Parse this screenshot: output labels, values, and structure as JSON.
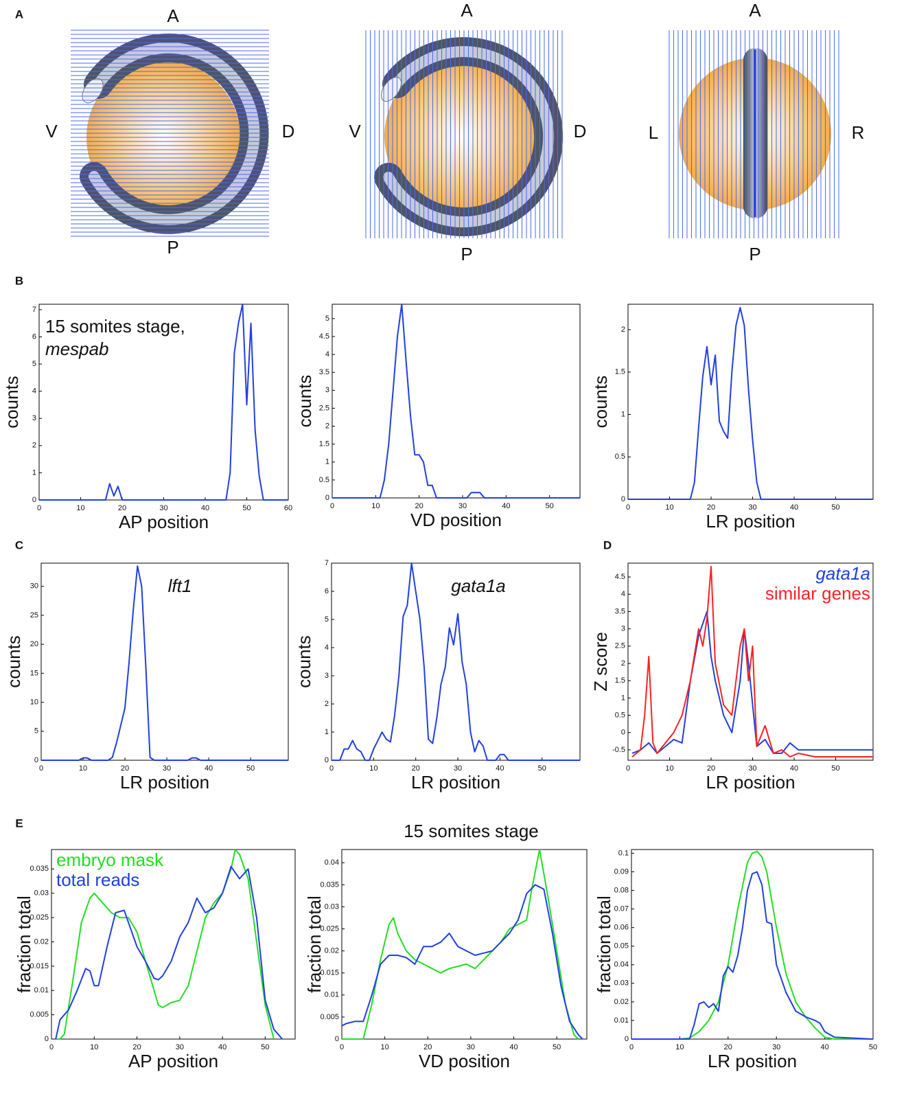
{
  "panel_labels": [
    "A",
    "B",
    "C",
    "D",
    "E"
  ],
  "diagrams": [
    {
      "top": "A",
      "bottom": "P",
      "left": "V",
      "right": "D"
    },
    {
      "top": "A",
      "bottom": "P",
      "left": "V",
      "right": "D"
    },
    {
      "top": "A",
      "bottom": "P",
      "left": "L",
      "right": "R"
    }
  ],
  "chart_data": [
    {
      "type": "line",
      "xlabel": "AP position",
      "ylabel": "counts",
      "annotations": [
        {
          "text": "15 somites stage,",
          "italic": false
        },
        {
          "text": "mespab",
          "italic": true
        }
      ],
      "xlim": [
        0,
        60
      ],
      "xticks": [
        0,
        10,
        20,
        30,
        40,
        50,
        60
      ],
      "ylim": [
        0,
        7.2
      ],
      "yticks": [
        0,
        1,
        2,
        3,
        4,
        5,
        6,
        7
      ],
      "series": [
        {
          "color": "#1f3fe0",
          "x": [
            0,
            16,
            17,
            18,
            19,
            20,
            45,
            46,
            47,
            48,
            49,
            50,
            51,
            52,
            53,
            54,
            60
          ],
          "values": [
            0,
            0,
            0.6,
            0.15,
            0.5,
            0,
            0,
            1,
            5.4,
            6.5,
            7.2,
            3.5,
            6.5,
            2.6,
            0.9,
            0,
            0
          ]
        }
      ]
    },
    {
      "type": "line",
      "xlabel": "VD position",
      "ylabel": "counts",
      "xlim": [
        0,
        57
      ],
      "xticks": [
        0,
        10,
        20,
        30,
        40,
        50
      ],
      "ylim": [
        0,
        5.4
      ],
      "yticks": [
        0,
        0.5,
        1,
        1.5,
        2,
        2.5,
        3,
        3.5,
        4,
        4.5,
        5
      ],
      "series": [
        {
          "color": "#1f3fe0",
          "x": [
            0,
            11,
            12,
            13,
            14,
            15,
            16,
            17,
            18,
            19,
            20,
            21,
            22,
            23,
            24,
            25,
            31,
            32,
            33,
            34,
            35,
            57
          ],
          "values": [
            0,
            0,
            0.5,
            1.5,
            3,
            4.5,
            5.4,
            3.8,
            2.3,
            1.2,
            1.2,
            1,
            0.35,
            0.35,
            0,
            0,
            0,
            0.15,
            0.15,
            0.15,
            0,
            0
          ]
        }
      ]
    },
    {
      "type": "line",
      "xlabel": "LR position",
      "ylabel": "counts",
      "xlim": [
        0,
        59
      ],
      "xticks": [
        0,
        10,
        20,
        30,
        40,
        50
      ],
      "ylim": [
        0,
        2.3
      ],
      "yticks": [
        0,
        0.5,
        1,
        1.5,
        2
      ],
      "series": [
        {
          "color": "#1f3fe0",
          "x": [
            0,
            15,
            16,
            17,
            18,
            19,
            20,
            21,
            22,
            23,
            24,
            25,
            26,
            27,
            28,
            29,
            30,
            31,
            32,
            59
          ],
          "values": [
            0,
            0,
            0.2,
            0.85,
            1.45,
            1.8,
            1.35,
            1.7,
            0.92,
            0.8,
            0.72,
            1.5,
            2.05,
            2.26,
            2.05,
            1.3,
            0.7,
            0.2,
            0,
            0
          ]
        }
      ]
    },
    {
      "type": "line",
      "xlabel": "LR position",
      "ylabel": "counts",
      "annotations": [
        {
          "text": "lft1",
          "italic": true
        }
      ],
      "xlim": [
        0,
        59
      ],
      "xticks": [
        0,
        10,
        20,
        30,
        40,
        50
      ],
      "ylim": [
        0,
        34
      ],
      "yticks": [
        0,
        5,
        10,
        15,
        20,
        25,
        30
      ],
      "series": [
        {
          "color": "#1f3fe0",
          "x": [
            0,
            9,
            10,
            11,
            12,
            13,
            16,
            17,
            18,
            19,
            20,
            21,
            22,
            23,
            24,
            25,
            26,
            27,
            35,
            36,
            37,
            38,
            59
          ],
          "values": [
            0,
            0,
            0.4,
            0.4,
            0,
            0,
            0,
            0.5,
            3,
            6,
            9,
            17,
            26,
            33.5,
            30,
            16,
            0.5,
            0,
            0,
            0.4,
            0.4,
            0,
            0
          ]
        }
      ]
    },
    {
      "type": "line",
      "xlabel": "LR position",
      "ylabel": "counts",
      "annotations": [
        {
          "text": "gata1a",
          "italic": true
        }
      ],
      "xlim": [
        0,
        59
      ],
      "xticks": [
        0,
        10,
        20,
        30,
        40,
        50
      ],
      "ylim": [
        0,
        7
      ],
      "yticks": [
        0,
        1,
        2,
        3,
        4,
        5,
        6,
        7
      ],
      "series": [
        {
          "color": "#1f3fe0",
          "x": [
            0,
            1,
            2,
            3,
            4,
            5,
            6,
            7,
            8,
            9,
            10,
            11,
            12,
            13,
            14,
            15,
            16,
            17,
            18,
            19,
            20,
            21,
            22,
            23,
            24,
            25,
            26,
            27,
            28,
            29,
            30,
            31,
            32,
            33,
            34,
            35,
            36,
            37,
            38,
            39,
            40,
            41,
            42,
            59
          ],
          "values": [
            0,
            0,
            0,
            0.4,
            0.4,
            0.7,
            0.4,
            0.3,
            0,
            0,
            0.4,
            0.7,
            1,
            0.75,
            0.65,
            1.6,
            3,
            5.1,
            5.5,
            7,
            6,
            5,
            3.3,
            0.75,
            0.6,
            1.5,
            2.7,
            3.3,
            4.7,
            4.1,
            5.2,
            3.5,
            2.7,
            1,
            0.3,
            0.7,
            0.5,
            0,
            0,
            0,
            0.2,
            0.2,
            0,
            0
          ]
        }
      ]
    },
    {
      "type": "line",
      "xlabel": "LR position",
      "ylabel": "Z score",
      "legend": "upper right",
      "xlim": [
        0,
        59
      ],
      "xticks": [
        0,
        10,
        20,
        30,
        40,
        50
      ],
      "ylim": [
        -0.8,
        4.9
      ],
      "yticks": [
        -0.5,
        0,
        0.5,
        1,
        1.5,
        2,
        2.5,
        3,
        3.5,
        4,
        4.5
      ],
      "series": [
        {
          "name": "gata1a",
          "color": "#1f3fe0",
          "italic": true,
          "x": [
            1,
            3,
            5,
            7,
            9,
            11,
            13,
            15,
            17,
            19,
            20,
            21,
            23,
            25,
            27,
            28,
            29,
            31,
            33,
            35,
            37,
            39,
            41,
            43,
            59
          ],
          "values": [
            -0.6,
            -0.5,
            -0.3,
            -0.6,
            -0.4,
            -0.2,
            -0.3,
            1.5,
            2.8,
            3.5,
            2.2,
            1.5,
            0.5,
            0,
            1.5,
            3,
            2,
            -0.4,
            -0.2,
            -0.6,
            -0.6,
            -0.3,
            -0.5,
            -0.5,
            -0.5
          ]
        },
        {
          "name": "similar genes",
          "color": "#ff2020",
          "italic": false,
          "x": [
            1,
            3,
            4,
            5,
            6,
            7,
            9,
            11,
            13,
            15,
            17,
            18,
            19,
            20,
            21,
            23,
            25,
            27,
            28,
            29,
            30,
            31,
            33,
            35,
            37,
            39,
            41,
            45,
            59
          ],
          "values": [
            -0.7,
            -0.5,
            0.5,
            2.2,
            -0.3,
            -0.6,
            -0.3,
            0,
            0.5,
            1.5,
            3,
            2.5,
            3.3,
            4.8,
            2,
            0.8,
            0.5,
            2.5,
            3,
            1.5,
            2.5,
            -0.4,
            0.2,
            -0.6,
            -0.5,
            -0.7,
            -0.6,
            -0.7,
            -0.7
          ]
        }
      ]
    },
    {
      "type": "line",
      "xlabel": "AP position",
      "ylabel": "fraction total",
      "legend": "upper left",
      "xlim": [
        0,
        57
      ],
      "xticks": [
        0,
        10,
        20,
        30,
        40,
        50
      ],
      "ylim": [
        0,
        0.039
      ],
      "yticks": [
        0,
        0.005,
        0.01,
        0.015,
        0.02,
        0.025,
        0.03,
        0.035
      ],
      "series": [
        {
          "name": "embryo mask",
          "color": "#22dd22",
          "x": [
            1,
            2,
            3,
            5,
            7,
            9,
            10,
            12,
            14,
            16,
            18,
            20,
            22,
            24,
            25,
            26,
            27,
            28,
            30,
            32,
            34,
            36,
            38,
            40,
            42,
            43,
            44,
            46,
            48,
            50,
            52
          ],
          "values": [
            0,
            0,
            0.001,
            0.012,
            0.024,
            0.029,
            0.03,
            0.028,
            0.026,
            0.025,
            0.025,
            0.022,
            0.016,
            0.01,
            0.007,
            0.0065,
            0.007,
            0.0075,
            0.008,
            0.011,
            0.018,
            0.025,
            0.028,
            0.03,
            0.035,
            0.039,
            0.038,
            0.033,
            0.02,
            0.007,
            0
          ]
        },
        {
          "name": "total reads",
          "color": "#1f3fe0",
          "x": [
            1,
            2,
            4,
            6,
            8,
            9,
            10,
            11,
            13,
            15,
            17,
            18,
            20,
            22,
            24,
            25,
            26,
            28,
            30,
            32,
            34,
            36,
            38,
            40,
            42,
            44,
            46,
            48,
            50,
            52,
            54
          ],
          "values": [
            0,
            0.004,
            0.006,
            0.01,
            0.0145,
            0.014,
            0.011,
            0.011,
            0.019,
            0.026,
            0.0265,
            0.024,
            0.019,
            0.016,
            0.0125,
            0.0122,
            0.013,
            0.016,
            0.021,
            0.024,
            0.029,
            0.026,
            0.027,
            0.03,
            0.0355,
            0.033,
            0.035,
            0.025,
            0.008,
            0.002,
            0
          ]
        }
      ]
    },
    {
      "type": "line",
      "title": "15 somites stage",
      "xlabel": "VD position",
      "ylabel": "fraction total",
      "xlim": [
        0,
        57
      ],
      "xticks": [
        0,
        10,
        20,
        30,
        40,
        50
      ],
      "ylim": [
        0,
        0.043
      ],
      "yticks": [
        0,
        0.005,
        0.01,
        0.015,
        0.02,
        0.025,
        0.03,
        0.035,
        0.04
      ],
      "series": [
        {
          "color": "#22dd22",
          "x": [
            0,
            5,
            7,
            9,
            11,
            12,
            13,
            15,
            17,
            19,
            21,
            23,
            25,
            27,
            29,
            31,
            33,
            35,
            37,
            39,
            41,
            43,
            44,
            45,
            46,
            48,
            50,
            52,
            54,
            55
          ],
          "values": [
            0,
            0,
            0.008,
            0.018,
            0.026,
            0.0275,
            0.024,
            0.02,
            0.018,
            0.017,
            0.016,
            0.015,
            0.016,
            0.0165,
            0.017,
            0.016,
            0.018,
            0.02,
            0.022,
            0.025,
            0.026,
            0.027,
            0.033,
            0.038,
            0.043,
            0.032,
            0.02,
            0.008,
            0.001,
            0
          ]
        },
        {
          "color": "#1f3fe0",
          "x": [
            0,
            1,
            3,
            5,
            7,
            9,
            11,
            13,
            15,
            17,
            19,
            21,
            23,
            25,
            27,
            29,
            31,
            33,
            35,
            37,
            39,
            41,
            43,
            45,
            47,
            49,
            51,
            53,
            55,
            56
          ],
          "values": [
            0.003,
            0.0035,
            0.004,
            0.004,
            0.01,
            0.017,
            0.019,
            0.019,
            0.0185,
            0.017,
            0.021,
            0.021,
            0.022,
            0.024,
            0.021,
            0.02,
            0.019,
            0.0195,
            0.02,
            0.022,
            0.024,
            0.027,
            0.033,
            0.035,
            0.034,
            0.024,
            0.012,
            0.004,
            0.001,
            0
          ]
        }
      ]
    },
    {
      "type": "line",
      "xlabel": "LR position",
      "ylabel": "fraction total",
      "xlim": [
        0,
        50
      ],
      "xticks": [
        0,
        10,
        20,
        30,
        40,
        50
      ],
      "ylim": [
        0,
        0.102
      ],
      "yticks": [
        0,
        0.01,
        0.02,
        0.03,
        0.04,
        0.05,
        0.06,
        0.07,
        0.08,
        0.09,
        0.1
      ],
      "series": [
        {
          "color": "#22dd22",
          "x": [
            0,
            10,
            12,
            14,
            16,
            18,
            20,
            22,
            24,
            25,
            26,
            27,
            28,
            30,
            32,
            34,
            36,
            38,
            40,
            42,
            50
          ],
          "values": [
            0,
            0,
            0.0005,
            0.004,
            0.01,
            0.02,
            0.04,
            0.07,
            0.095,
            0.1,
            0.101,
            0.098,
            0.09,
            0.06,
            0.035,
            0.02,
            0.012,
            0.006,
            0.001,
            0,
            0
          ]
        },
        {
          "color": "#1f3fe0",
          "x": [
            0,
            12,
            13,
            14,
            15,
            16,
            17,
            18,
            19,
            20,
            21,
            22,
            23,
            24,
            25,
            26,
            27,
            28,
            29,
            30,
            32,
            34,
            36,
            38,
            39,
            40,
            42,
            50
          ],
          "values": [
            0,
            0,
            0.008,
            0.019,
            0.02,
            0.017,
            0.019,
            0.015,
            0.034,
            0.039,
            0.036,
            0.045,
            0.06,
            0.08,
            0.089,
            0.09,
            0.083,
            0.063,
            0.062,
            0.04,
            0.025,
            0.015,
            0.012,
            0.01,
            0.0085,
            0.004,
            0.001,
            0
          ]
        }
      ]
    }
  ]
}
